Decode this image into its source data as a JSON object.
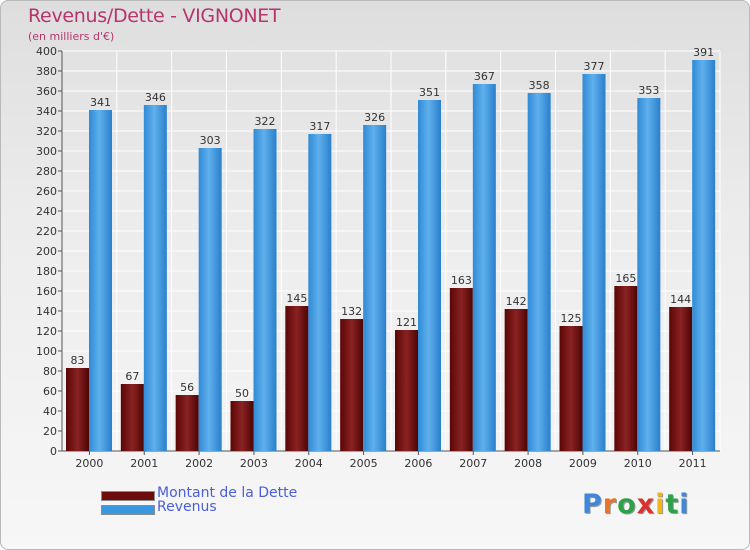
{
  "header": {
    "title": "Revenus/Dette - VIGNONET",
    "subtitle": "(en milliers d'€)"
  },
  "chart_data": {
    "type": "bar",
    "categories": [
      "2000",
      "2001",
      "2002",
      "2003",
      "2004",
      "2005",
      "2006",
      "2007",
      "2008",
      "2009",
      "2010",
      "2011"
    ],
    "series": [
      {
        "name": "Montant de la Dette",
        "color": "#7a1414",
        "values": [
          83,
          67,
          56,
          50,
          145,
          132,
          121,
          163,
          142,
          125,
          165,
          144
        ]
      },
      {
        "name": "Revenus",
        "color": "#3a98e0",
        "values": [
          341,
          346,
          303,
          322,
          317,
          326,
          351,
          367,
          358,
          377,
          353,
          391
        ]
      }
    ],
    "ylim": [
      0,
      400
    ],
    "ytick_step": 20,
    "grid": true,
    "legend_position": "bottom-left"
  },
  "legend": {
    "items": [
      {
        "label": "Montant de la Dette",
        "color": "#6e0b0b"
      },
      {
        "label": "Revenus",
        "color": "#3a98e0"
      }
    ]
  },
  "logo": {
    "letters": [
      "P",
      "r",
      "o",
      "x",
      "i",
      "t",
      "i"
    ],
    "colors": [
      "#3f87d8",
      "#e8742a",
      "#2fa14a",
      "#d7332f",
      "#f1b51c",
      "#2fa14a",
      "#3f87d8"
    ]
  }
}
